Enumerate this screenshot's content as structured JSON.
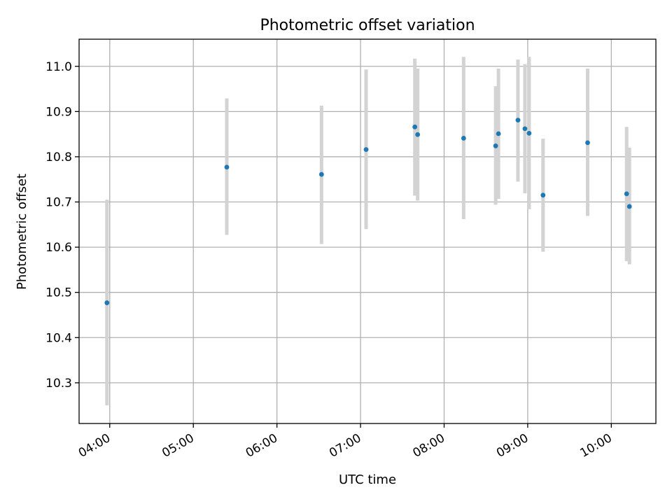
{
  "chart_data": {
    "type": "scatter",
    "title": "Photometric offset variation",
    "xlabel": "UTC time",
    "ylabel": "Photometric offset",
    "x_tick_labels": [
      "04:00",
      "05:00",
      "06:00",
      "07:00",
      "08:00",
      "09:00",
      "10:00"
    ],
    "y_tick_labels": [
      "10.3",
      "10.4",
      "10.5",
      "10.6",
      "10.7",
      "10.8",
      "10.9",
      "11.0"
    ],
    "xlim": [
      "03:38",
      "10:32"
    ],
    "ylim": [
      10.21,
      11.06
    ],
    "grid": true,
    "colors": {
      "marker": "#1f77b4",
      "errorbar": "#d3d3d3",
      "grid": "#b0b0b0"
    },
    "points": [
      {
        "time": "03:58",
        "value": 10.477,
        "err_low": 10.25,
        "err_high": 10.705
      },
      {
        "time": "05:24",
        "value": 10.777,
        "err_low": 10.627,
        "err_high": 10.929
      },
      {
        "time": "06:32",
        "value": 10.761,
        "err_low": 10.607,
        "err_high": 10.913
      },
      {
        "time": "07:04",
        "value": 10.816,
        "err_low": 10.64,
        "err_high": 10.993
      },
      {
        "time": "07:39",
        "value": 10.866,
        "err_low": 10.714,
        "err_high": 11.017
      },
      {
        "time": "07:41",
        "value": 10.849,
        "err_low": 10.703,
        "err_high": 10.995
      },
      {
        "time": "08:14",
        "value": 10.841,
        "err_low": 10.662,
        "err_high": 11.021
      },
      {
        "time": "08:37",
        "value": 10.824,
        "err_low": 10.694,
        "err_high": 10.956
      },
      {
        "time": "08:39",
        "value": 10.851,
        "err_low": 10.707,
        "err_high": 10.995
      },
      {
        "time": "08:53",
        "value": 10.881,
        "err_low": 10.745,
        "err_high": 11.015
      },
      {
        "time": "08:58",
        "value": 10.862,
        "err_low": 10.719,
        "err_high": 11.005
      },
      {
        "time": "09:01",
        "value": 10.852,
        "err_low": 10.684,
        "err_high": 11.021
      },
      {
        "time": "09:11",
        "value": 10.715,
        "err_low": 10.59,
        "err_high": 10.84
      },
      {
        "time": "09:43",
        "value": 10.831,
        "err_low": 10.669,
        "err_high": 10.995
      },
      {
        "time": "10:11",
        "value": 10.718,
        "err_low": 10.569,
        "err_high": 10.866
      },
      {
        "time": "10:13",
        "value": 10.69,
        "err_low": 10.562,
        "err_high": 10.82
      }
    ]
  }
}
